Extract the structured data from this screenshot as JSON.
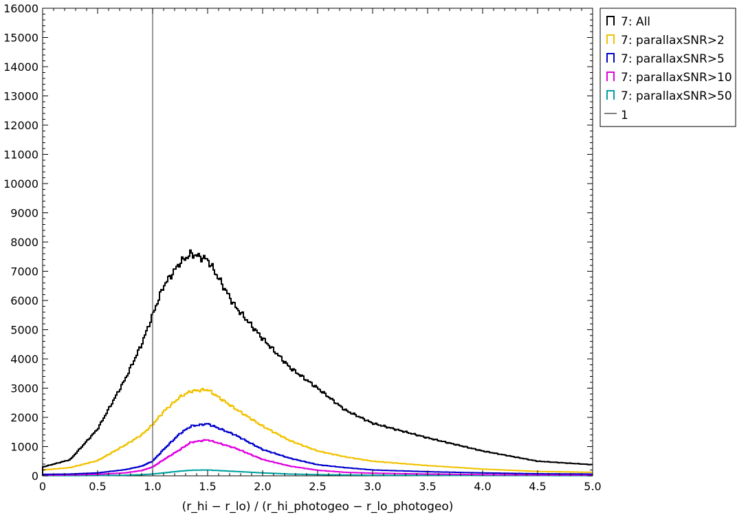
{
  "chart_data": {
    "type": "histogram-step",
    "title": "",
    "xlabel": "(r_hi − r_lo)  / (r_hi_photogeo − r_lo_photogeo)",
    "ylabel": "",
    "xlim": [
      0,
      5.0
    ],
    "ylim": [
      0,
      16000
    ],
    "x_ticks": [
      "0",
      "0.5",
      "1.0",
      "1.5",
      "2.0",
      "2.5",
      "3.0",
      "3.5",
      "4.0",
      "4.5",
      "5.0"
    ],
    "y_ticks": [
      "0",
      "1000",
      "2000",
      "3000",
      "4000",
      "5000",
      "6000",
      "7000",
      "8000",
      "9000",
      "10000",
      "11000",
      "12000",
      "13000",
      "14000",
      "15000",
      "16000"
    ],
    "grid": false,
    "legend_position": "outside-top-right",
    "vline": {
      "name": "1",
      "x": 1.0,
      "color": "#555555"
    },
    "x": [
      0.0,
      0.25,
      0.5,
      0.75,
      0.9,
      1.0,
      1.1,
      1.25,
      1.35,
      1.5,
      1.75,
      2.0,
      2.25,
      2.5,
      2.75,
      3.0,
      3.5,
      4.0,
      4.5,
      5.0
    ],
    "series": [
      {
        "name": "7: All",
        "color": "#000000",
        "values": [
          300,
          550,
          1600,
          3300,
          4500,
          5500,
          6500,
          7300,
          7600,
          7400,
          5800,
          4700,
          3700,
          3000,
          2250,
          1800,
          1300,
          850,
          500,
          380
        ]
      },
      {
        "name": "7: parallaxSNR>2",
        "color": "#f2c200",
        "values": [
          200,
          280,
          520,
          1050,
          1400,
          1750,
          2200,
          2700,
          2900,
          2950,
          2300,
          1700,
          1200,
          850,
          650,
          500,
          350,
          230,
          150,
          120
        ]
      },
      {
        "name": "7: parallaxSNR>5",
        "color": "#0000cc",
        "values": [
          50,
          60,
          100,
          210,
          330,
          500,
          900,
          1450,
          1700,
          1780,
          1400,
          900,
          600,
          380,
          280,
          200,
          140,
          100,
          70,
          60
        ]
      },
      {
        "name": "7: parallaxSNR>10",
        "color": "#e000e0",
        "values": [
          20,
          30,
          50,
          100,
          180,
          300,
          550,
          900,
          1150,
          1230,
          950,
          560,
          330,
          190,
          120,
          90,
          60,
          40,
          30,
          25
        ]
      },
      {
        "name": "7: parallaxSNR>50",
        "color": "#00a0a0",
        "values": [
          5,
          6,
          10,
          20,
          40,
          60,
          100,
          160,
          190,
          200,
          150,
          100,
          60,
          40,
          30,
          20,
          15,
          10,
          8,
          6
        ]
      }
    ]
  }
}
